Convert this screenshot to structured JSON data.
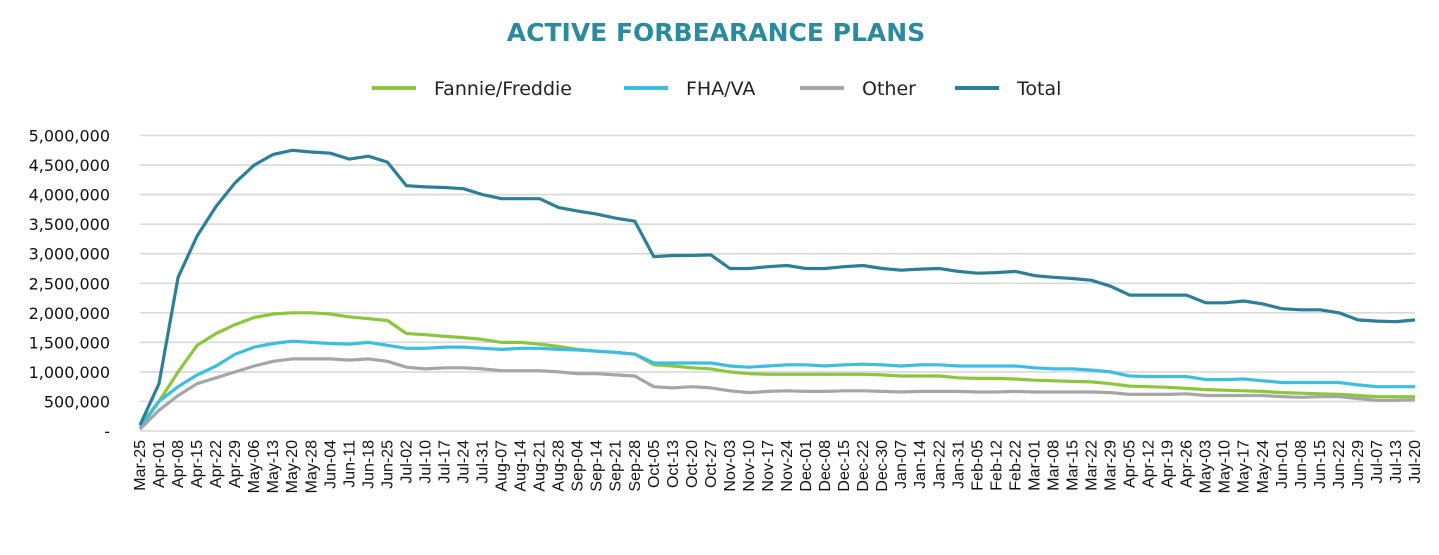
{
  "chart_data": {
    "type": "line",
    "title": "ACTIVE FORBEARANCE PLANS",
    "xlabel": "",
    "ylabel": "",
    "ylim": [
      0,
      5000000
    ],
    "grid": true,
    "legend_placement": "top",
    "yticks": [
      0,
      500000,
      1000000,
      1500000,
      2000000,
      2500000,
      3000000,
      3500000,
      4000000,
      4500000,
      5000000
    ],
    "ytick_labels": [
      "-",
      "500,000",
      "1,000,000",
      "1,500,000",
      "2,000,000",
      "2,500,000",
      "3,000,000",
      "3,500,000",
      "4,000,000",
      "4,500,000",
      "5,000,000"
    ],
    "categories": [
      "Mar-25",
      "Apr-01",
      "Apr-08",
      "Apr-15",
      "Apr-22",
      "Apr-29",
      "May-06",
      "May-13",
      "May-20",
      "May-28",
      "Jun-04",
      "Jun-11",
      "Jun-18",
      "Jun-25",
      "Jul-02",
      "Jul-10",
      "Jul-17",
      "Jul-24",
      "Jul-31",
      "Aug-07",
      "Aug-14",
      "Aug-21",
      "Aug-28",
      "Sep-04",
      "Sep-14",
      "Sep-21",
      "Sep-28",
      "Oct-05",
      "Oct-13",
      "Oct-20",
      "Oct-27",
      "Nov-03",
      "Nov-10",
      "Nov-17",
      "Nov-24",
      "Dec-01",
      "Dec-08",
      "Dec-15",
      "Dec-22",
      "Dec-30",
      "Jan-07",
      "Jan-14",
      "Jan-22",
      "Jan-31",
      "Feb-05",
      "Feb-12",
      "Feb-22",
      "Mar-01",
      "Mar-08",
      "Mar-15",
      "Mar-22",
      "Mar-29",
      "Apr-05",
      "Apr-12",
      "Apr-19",
      "Apr-26",
      "May-03",
      "May-10",
      "May-17",
      "May-24",
      "Jun-01",
      "Jun-08",
      "Jun-15",
      "Jun-22",
      "Jun-29",
      "Jul-07",
      "Jul-13",
      "Jul-20"
    ],
    "series": [
      {
        "name": "Fannie/Freddie",
        "color": "#8cc63e",
        "values": [
          100000,
          500000,
          1000000,
          1450000,
          1650000,
          1800000,
          1920000,
          1980000,
          2000000,
          2000000,
          1980000,
          1930000,
          1900000,
          1870000,
          1650000,
          1630000,
          1600000,
          1580000,
          1550000,
          1500000,
          1500000,
          1470000,
          1430000,
          1380000,
          1350000,
          1330000,
          1300000,
          1120000,
          1100000,
          1070000,
          1050000,
          1000000,
          970000,
          960000,
          960000,
          960000,
          960000,
          960000,
          960000,
          950000,
          930000,
          930000,
          930000,
          900000,
          890000,
          890000,
          880000,
          860000,
          850000,
          840000,
          830000,
          800000,
          760000,
          750000,
          740000,
          720000,
          700000,
          690000,
          680000,
          670000,
          650000,
          640000,
          630000,
          620000,
          600000,
          580000,
          580000,
          580000
        ]
      },
      {
        "name": "FHA/VA",
        "color": "#3dbde2",
        "values": [
          50000,
          500000,
          750000,
          950000,
          1100000,
          1300000,
          1420000,
          1480000,
          1520000,
          1500000,
          1480000,
          1470000,
          1500000,
          1450000,
          1400000,
          1400000,
          1420000,
          1420000,
          1400000,
          1380000,
          1400000,
          1400000,
          1380000,
          1370000,
          1350000,
          1330000,
          1300000,
          1150000,
          1150000,
          1150000,
          1150000,
          1100000,
          1080000,
          1100000,
          1120000,
          1120000,
          1100000,
          1120000,
          1130000,
          1120000,
          1100000,
          1120000,
          1120000,
          1100000,
          1100000,
          1100000,
          1100000,
          1070000,
          1050000,
          1050000,
          1030000,
          1000000,
          930000,
          920000,
          920000,
          920000,
          870000,
          870000,
          880000,
          850000,
          820000,
          820000,
          820000,
          820000,
          780000,
          750000,
          750000,
          750000
        ]
      },
      {
        "name": "Other",
        "color": "#a6a6a6",
        "values": [
          30000,
          350000,
          600000,
          800000,
          900000,
          1000000,
          1100000,
          1180000,
          1220000,
          1220000,
          1220000,
          1200000,
          1220000,
          1180000,
          1080000,
          1050000,
          1070000,
          1070000,
          1050000,
          1020000,
          1020000,
          1020000,
          1000000,
          970000,
          970000,
          950000,
          930000,
          750000,
          730000,
          750000,
          730000,
          680000,
          650000,
          670000,
          680000,
          670000,
          670000,
          680000,
          680000,
          670000,
          660000,
          670000,
          670000,
          670000,
          660000,
          660000,
          670000,
          660000,
          660000,
          660000,
          660000,
          650000,
          620000,
          620000,
          620000,
          630000,
          600000,
          600000,
          600000,
          600000,
          580000,
          570000,
          580000,
          580000,
          550000,
          520000,
          520000,
          530000
        ]
      },
      {
        "name": "Total",
        "color": "#2b7f99",
        "values": [
          100000,
          800000,
          2600000,
          3300000,
          3800000,
          4200000,
          4500000,
          4680000,
          4750000,
          4720000,
          4700000,
          4600000,
          4650000,
          4550000,
          4150000,
          4130000,
          4120000,
          4100000,
          4000000,
          3930000,
          3930000,
          3930000,
          3780000,
          3720000,
          3670000,
          3600000,
          3550000,
          2950000,
          2970000,
          2970000,
          2980000,
          2750000,
          2750000,
          2780000,
          2800000,
          2750000,
          2750000,
          2780000,
          2800000,
          2750000,
          2720000,
          2740000,
          2750000,
          2700000,
          2670000,
          2680000,
          2700000,
          2630000,
          2600000,
          2580000,
          2550000,
          2450000,
          2300000,
          2300000,
          2300000,
          2300000,
          2170000,
          2170000,
          2200000,
          2150000,
          2070000,
          2050000,
          2050000,
          2000000,
          1880000,
          1860000,
          1850000,
          1880000
        ]
      }
    ]
  }
}
